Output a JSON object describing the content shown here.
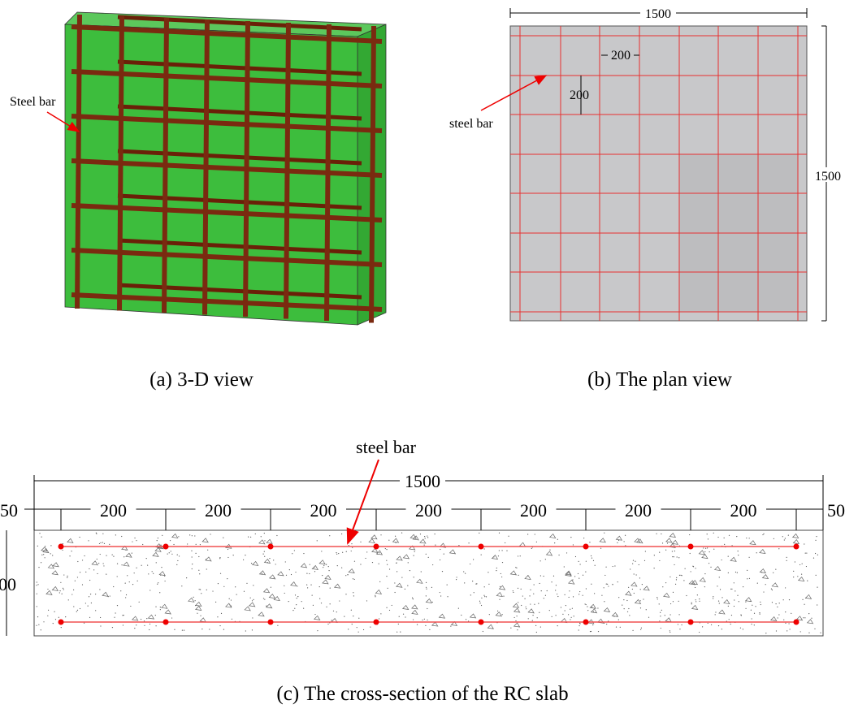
{
  "panels": [
    {
      "caption": "(a) 3-D view",
      "label": "Steel bar"
    },
    {
      "caption": "(b) The plan view",
      "label": "steel bar",
      "width": 1500,
      "height": 1500,
      "spacing_x": 200,
      "spacing_y": 200
    },
    {
      "caption": "(c) The cross-section of the RC slab",
      "label": "steel bar",
      "total_width": 1500,
      "left_cover": 50,
      "spacings": [
        200,
        200,
        200,
        200,
        200,
        200,
        200
      ],
      "right_cover": 50,
      "thickness": "00"
    }
  ]
}
